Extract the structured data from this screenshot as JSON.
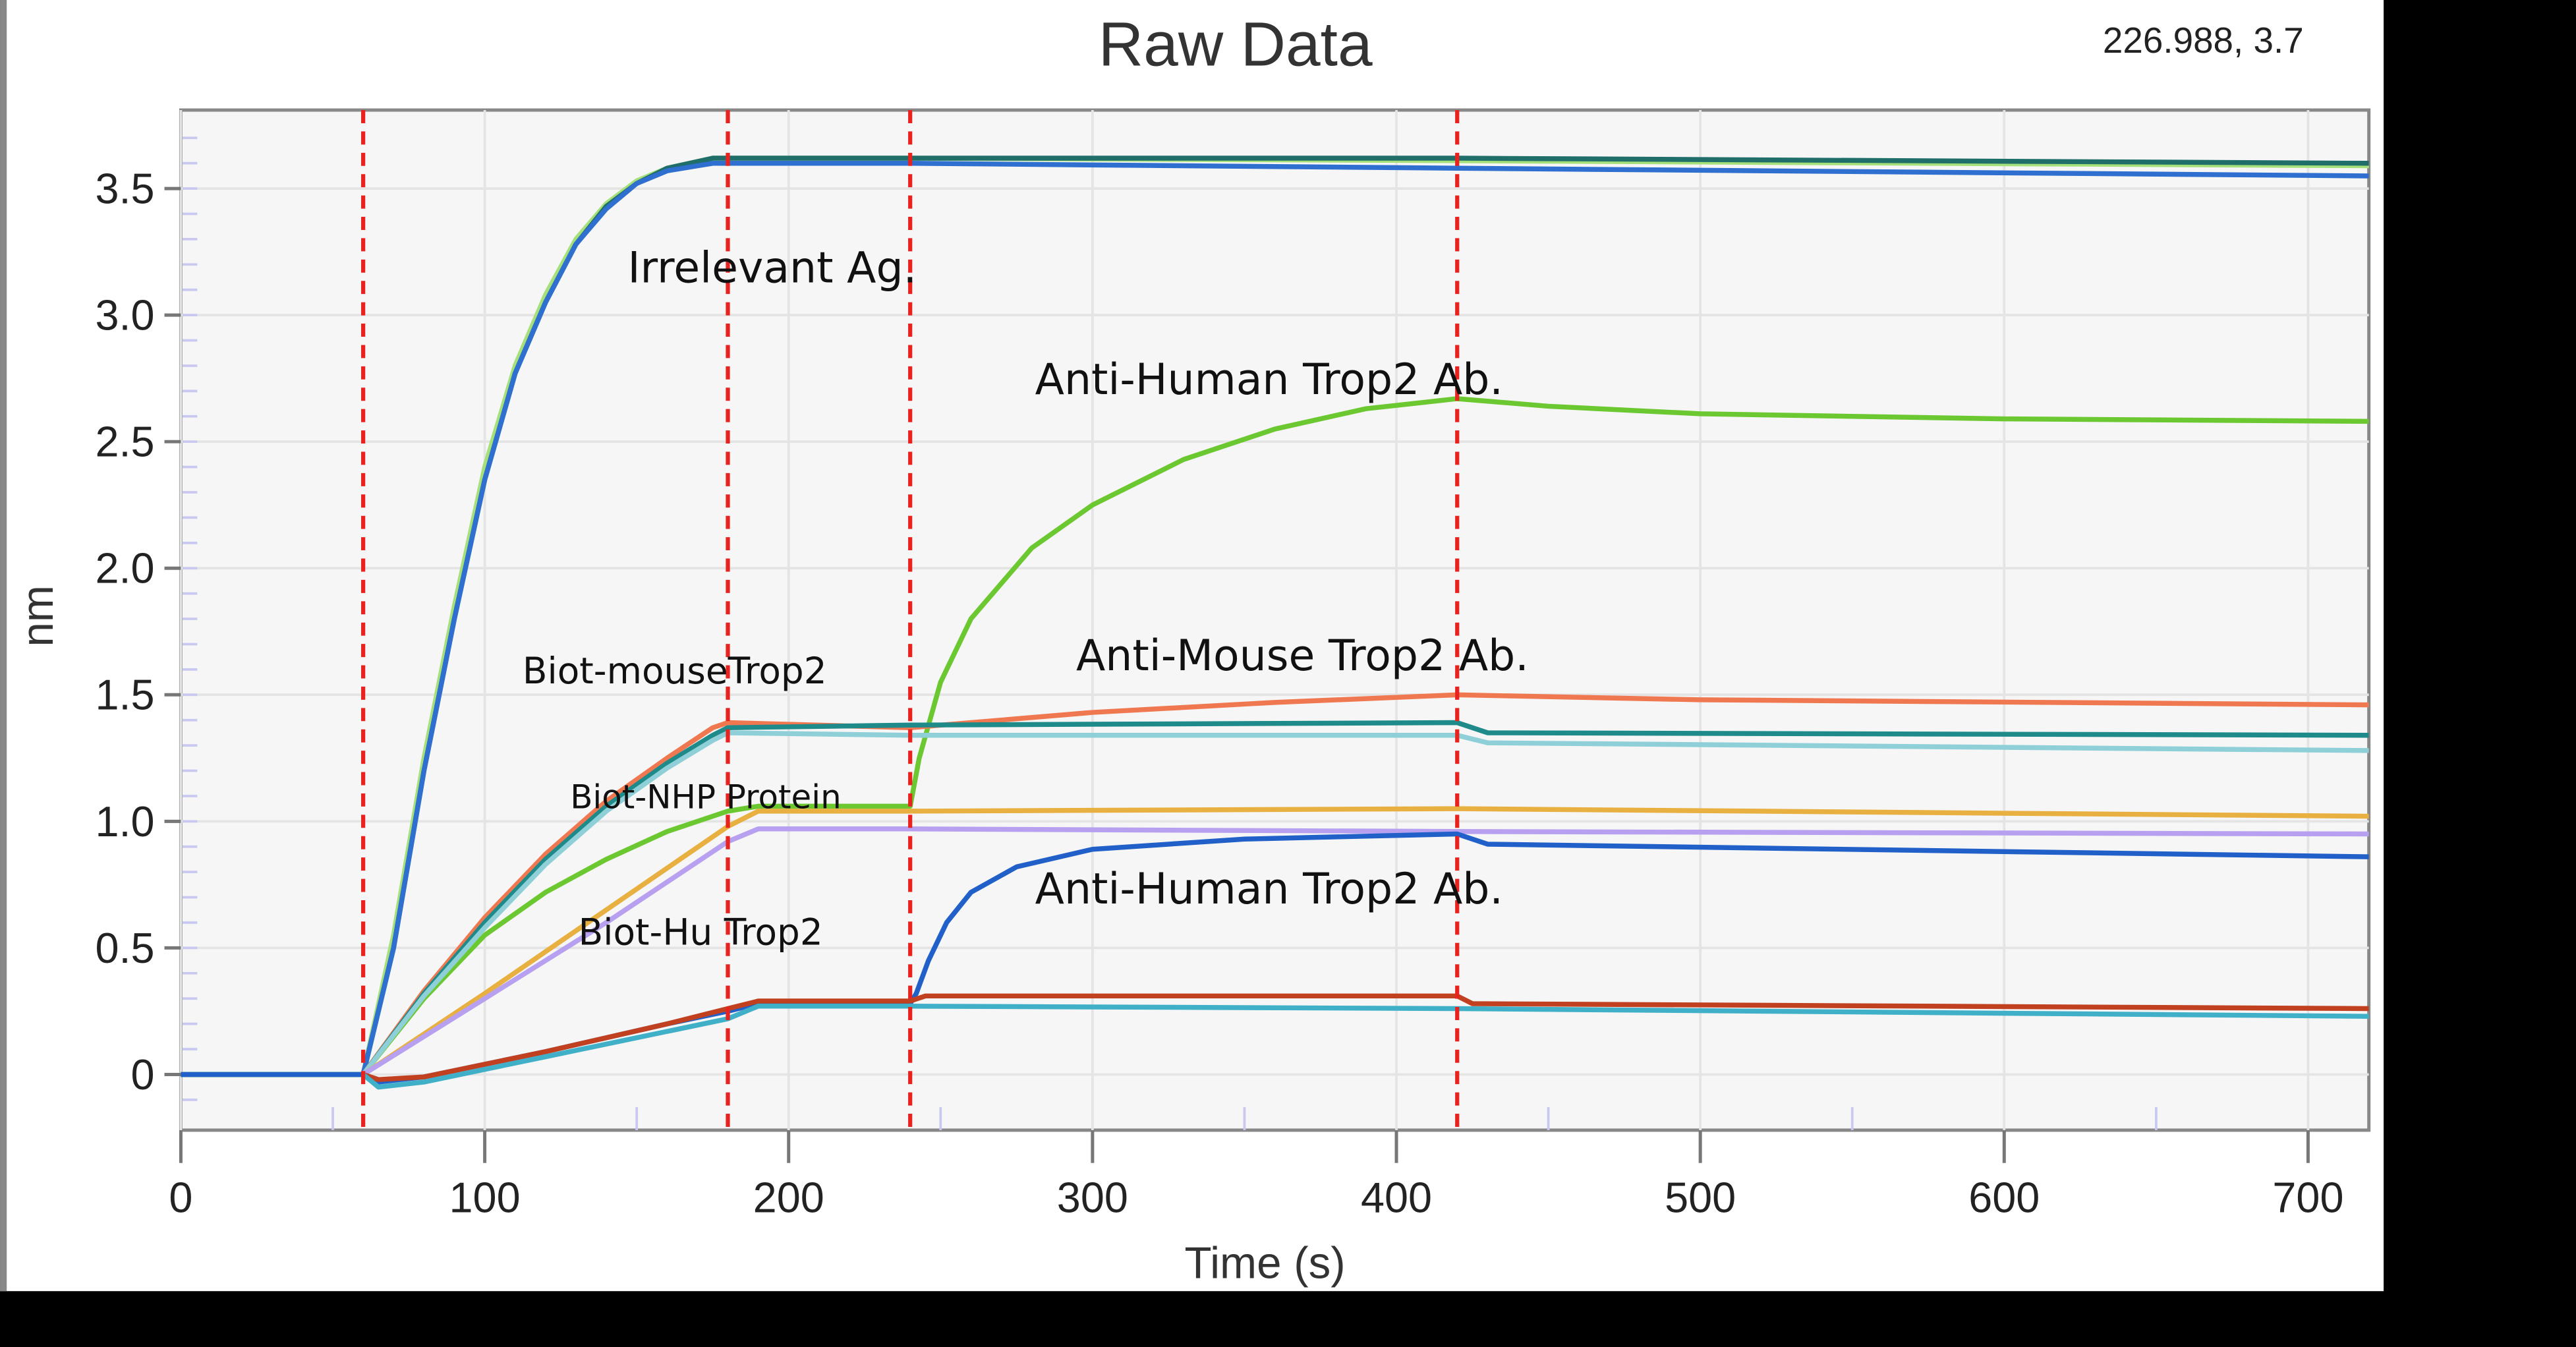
{
  "chart_data": {
    "type": "line",
    "title": "Raw Data",
    "cursor_readout": "226.988, 3.7",
    "xlabel": "Time (s)",
    "ylabel": "nm",
    "xlim": [
      0,
      720
    ],
    "ylim": [
      -0.22,
      3.81
    ],
    "x_ticks": [
      "0",
      "100",
      "200",
      "300",
      "400",
      "500",
      "600",
      "700"
    ],
    "y_ticks": [
      "0",
      "0.5",
      "1.0",
      "1.5",
      "2.0",
      "2.5",
      "3.0",
      "3.5"
    ],
    "grid": true,
    "step_markers_s": [
      60,
      180,
      240,
      420
    ],
    "marker_color": "#e8231f",
    "annotations": [
      {
        "text": "Irrelevant Ag."
      },
      {
        "text": "Anti-Human Trop2 Ab."
      },
      {
        "text": "Biot-mouseTrop2"
      },
      {
        "text": "Anti-Mouse Trop2 Ab."
      },
      {
        "text": "Biot-NHP Protein"
      },
      {
        "text": "Biot-Hu Trop2"
      },
      {
        "text": "Anti-Human Trop2 Ab."
      }
    ],
    "series": [
      {
        "color": "#a6e07a",
        "points": [
          [
            0,
            0
          ],
          [
            60,
            0
          ],
          [
            70,
            0.55
          ],
          [
            80,
            1.25
          ],
          [
            90,
            1.85
          ],
          [
            100,
            2.4
          ],
          [
            110,
            2.8
          ],
          [
            120,
            3.08
          ],
          [
            130,
            3.3
          ],
          [
            140,
            3.44
          ],
          [
            150,
            3.53
          ],
          [
            160,
            3.58
          ],
          [
            175,
            3.62
          ],
          [
            240,
            3.62
          ],
          [
            420,
            3.61
          ],
          [
            720,
            3.59
          ]
        ]
      },
      {
        "color": "#1f6e6a",
        "points": [
          [
            0,
            0
          ],
          [
            60,
            0
          ],
          [
            70,
            0.5
          ],
          [
            80,
            1.2
          ],
          [
            90,
            1.8
          ],
          [
            100,
            2.35
          ],
          [
            110,
            2.77
          ],
          [
            120,
            3.05
          ],
          [
            130,
            3.28
          ],
          [
            140,
            3.43
          ],
          [
            150,
            3.52
          ],
          [
            160,
            3.58
          ],
          [
            175,
            3.62
          ],
          [
            240,
            3.62
          ],
          [
            420,
            3.62
          ],
          [
            720,
            3.6
          ]
        ]
      },
      {
        "color": "#2e6fd0",
        "points": [
          [
            0,
            0
          ],
          [
            60,
            0
          ],
          [
            70,
            0.5
          ],
          [
            80,
            1.2
          ],
          [
            90,
            1.8
          ],
          [
            100,
            2.35
          ],
          [
            110,
            2.77
          ],
          [
            120,
            3.05
          ],
          [
            130,
            3.28
          ],
          [
            140,
            3.42
          ],
          [
            150,
            3.52
          ],
          [
            160,
            3.57
          ],
          [
            175,
            3.6
          ],
          [
            240,
            3.6
          ],
          [
            420,
            3.58
          ],
          [
            720,
            3.55
          ]
        ]
      },
      {
        "color": "#6cc830",
        "points": [
          [
            0,
            0
          ],
          [
            60,
            0
          ],
          [
            80,
            0.3
          ],
          [
            100,
            0.55
          ],
          [
            120,
            0.72
          ],
          [
            140,
            0.85
          ],
          [
            160,
            0.96
          ],
          [
            180,
            1.04
          ],
          [
            190,
            1.06
          ],
          [
            240,
            1.06
          ],
          [
            243,
            1.25
          ],
          [
            250,
            1.55
          ],
          [
            260,
            1.8
          ],
          [
            280,
            2.08
          ],
          [
            300,
            2.25
          ],
          [
            330,
            2.43
          ],
          [
            360,
            2.55
          ],
          [
            390,
            2.63
          ],
          [
            420,
            2.67
          ],
          [
            450,
            2.64
          ],
          [
            500,
            2.61
          ],
          [
            600,
            2.59
          ],
          [
            720,
            2.58
          ]
        ]
      },
      {
        "color": "#f07850",
        "points": [
          [
            60,
            0
          ],
          [
            80,
            0.33
          ],
          [
            100,
            0.62
          ],
          [
            120,
            0.87
          ],
          [
            140,
            1.08
          ],
          [
            160,
            1.25
          ],
          [
            175,
            1.37
          ],
          [
            180,
            1.39
          ],
          [
            240,
            1.37
          ],
          [
            300,
            1.43
          ],
          [
            360,
            1.47
          ],
          [
            420,
            1.5
          ],
          [
            500,
            1.48
          ],
          [
            720,
            1.46
          ]
        ]
      },
      {
        "color": "#1e8a8a",
        "points": [
          [
            60,
            0
          ],
          [
            80,
            0.32
          ],
          [
            100,
            0.6
          ],
          [
            120,
            0.85
          ],
          [
            140,
            1.06
          ],
          [
            160,
            1.23
          ],
          [
            175,
            1.34
          ],
          [
            180,
            1.37
          ],
          [
            240,
            1.38
          ],
          [
            420,
            1.39
          ],
          [
            430,
            1.35
          ],
          [
            720,
            1.34
          ]
        ]
      },
      {
        "color": "#8fd0d8",
        "points": [
          [
            60,
            0
          ],
          [
            80,
            0.31
          ],
          [
            100,
            0.58
          ],
          [
            120,
            0.83
          ],
          [
            140,
            1.04
          ],
          [
            160,
            1.21
          ],
          [
            175,
            1.32
          ],
          [
            180,
            1.35
          ],
          [
            240,
            1.34
          ],
          [
            420,
            1.34
          ],
          [
            430,
            1.31
          ],
          [
            720,
            1.28
          ]
        ]
      },
      {
        "color": "#e8b040",
        "points": [
          [
            60,
            0
          ],
          [
            100,
            0.32
          ],
          [
            140,
            0.65
          ],
          [
            180,
            0.98
          ],
          [
            190,
            1.04
          ],
          [
            240,
            1.04
          ],
          [
            420,
            1.05
          ],
          [
            720,
            1.02
          ]
        ]
      },
      {
        "color": "#b8a0f0",
        "points": [
          [
            60,
            0
          ],
          [
            100,
            0.3
          ],
          [
            140,
            0.6
          ],
          [
            180,
            0.92
          ],
          [
            190,
            0.97
          ],
          [
            240,
            0.97
          ],
          [
            420,
            0.96
          ],
          [
            720,
            0.95
          ]
        ]
      },
      {
        "color": "#2060c8",
        "points": [
          [
            0,
            0
          ],
          [
            60,
            0
          ],
          [
            65,
            -0.03
          ],
          [
            80,
            -0.01
          ],
          [
            120,
            0.09
          ],
          [
            160,
            0.2
          ],
          [
            180,
            0.25
          ],
          [
            190,
            0.28
          ],
          [
            240,
            0.28
          ],
          [
            242,
            0.32
          ],
          [
            246,
            0.45
          ],
          [
            252,
            0.6
          ],
          [
            260,
            0.72
          ],
          [
            275,
            0.82
          ],
          [
            300,
            0.89
          ],
          [
            350,
            0.93
          ],
          [
            420,
            0.95
          ],
          [
            430,
            0.91
          ],
          [
            720,
            0.86
          ]
        ]
      },
      {
        "color": "#c04020",
        "points": [
          [
            60,
            0
          ],
          [
            65,
            -0.02
          ],
          [
            80,
            -0.01
          ],
          [
            120,
            0.09
          ],
          [
            160,
            0.2
          ],
          [
            180,
            0.26
          ],
          [
            190,
            0.29
          ],
          [
            240,
            0.29
          ],
          [
            245,
            0.31
          ],
          [
            420,
            0.31
          ],
          [
            425,
            0.28
          ],
          [
            720,
            0.26
          ]
        ]
      },
      {
        "color": "#40b0c8",
        "points": [
          [
            60,
            0
          ],
          [
            65,
            -0.05
          ],
          [
            80,
            -0.03
          ],
          [
            120,
            0.07
          ],
          [
            160,
            0.17
          ],
          [
            180,
            0.22
          ],
          [
            190,
            0.27
          ],
          [
            240,
            0.27
          ],
          [
            420,
            0.26
          ],
          [
            720,
            0.23
          ]
        ]
      }
    ]
  }
}
